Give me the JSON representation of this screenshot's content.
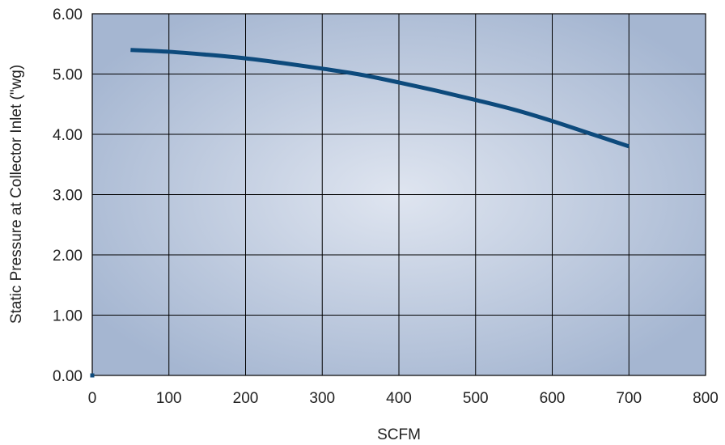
{
  "chart_data": {
    "type": "line",
    "xlabel": "SCFM",
    "ylabel": "Static Pressure at Collector Inlet (\"wg)",
    "xlim": [
      0,
      800
    ],
    "ylim": [
      0,
      6
    ],
    "x_ticks": [
      "0",
      "100",
      "200",
      "300",
      "400",
      "500",
      "600",
      "700",
      "800"
    ],
    "y_ticks": [
      "0.00",
      "1.00",
      "2.00",
      "3.00",
      "4.00",
      "5.00",
      "6.00"
    ],
    "grid": true,
    "series": [
      {
        "color": "#0d4a7c",
        "x": [
          50,
          100,
          150,
          200,
          250,
          300,
          350,
          400,
          450,
          500,
          550,
          600,
          650,
          700
        ],
        "y": [
          5.4,
          5.37,
          5.32,
          5.26,
          5.18,
          5.09,
          4.99,
          4.86,
          4.72,
          4.57,
          4.41,
          4.22,
          4.01,
          3.8
        ]
      }
    ],
    "colors": {
      "plot_center": "#dfe5f0",
      "plot_edge": "#a5b6d1",
      "grid": "#000000",
      "line": "#0d4a7c"
    }
  }
}
